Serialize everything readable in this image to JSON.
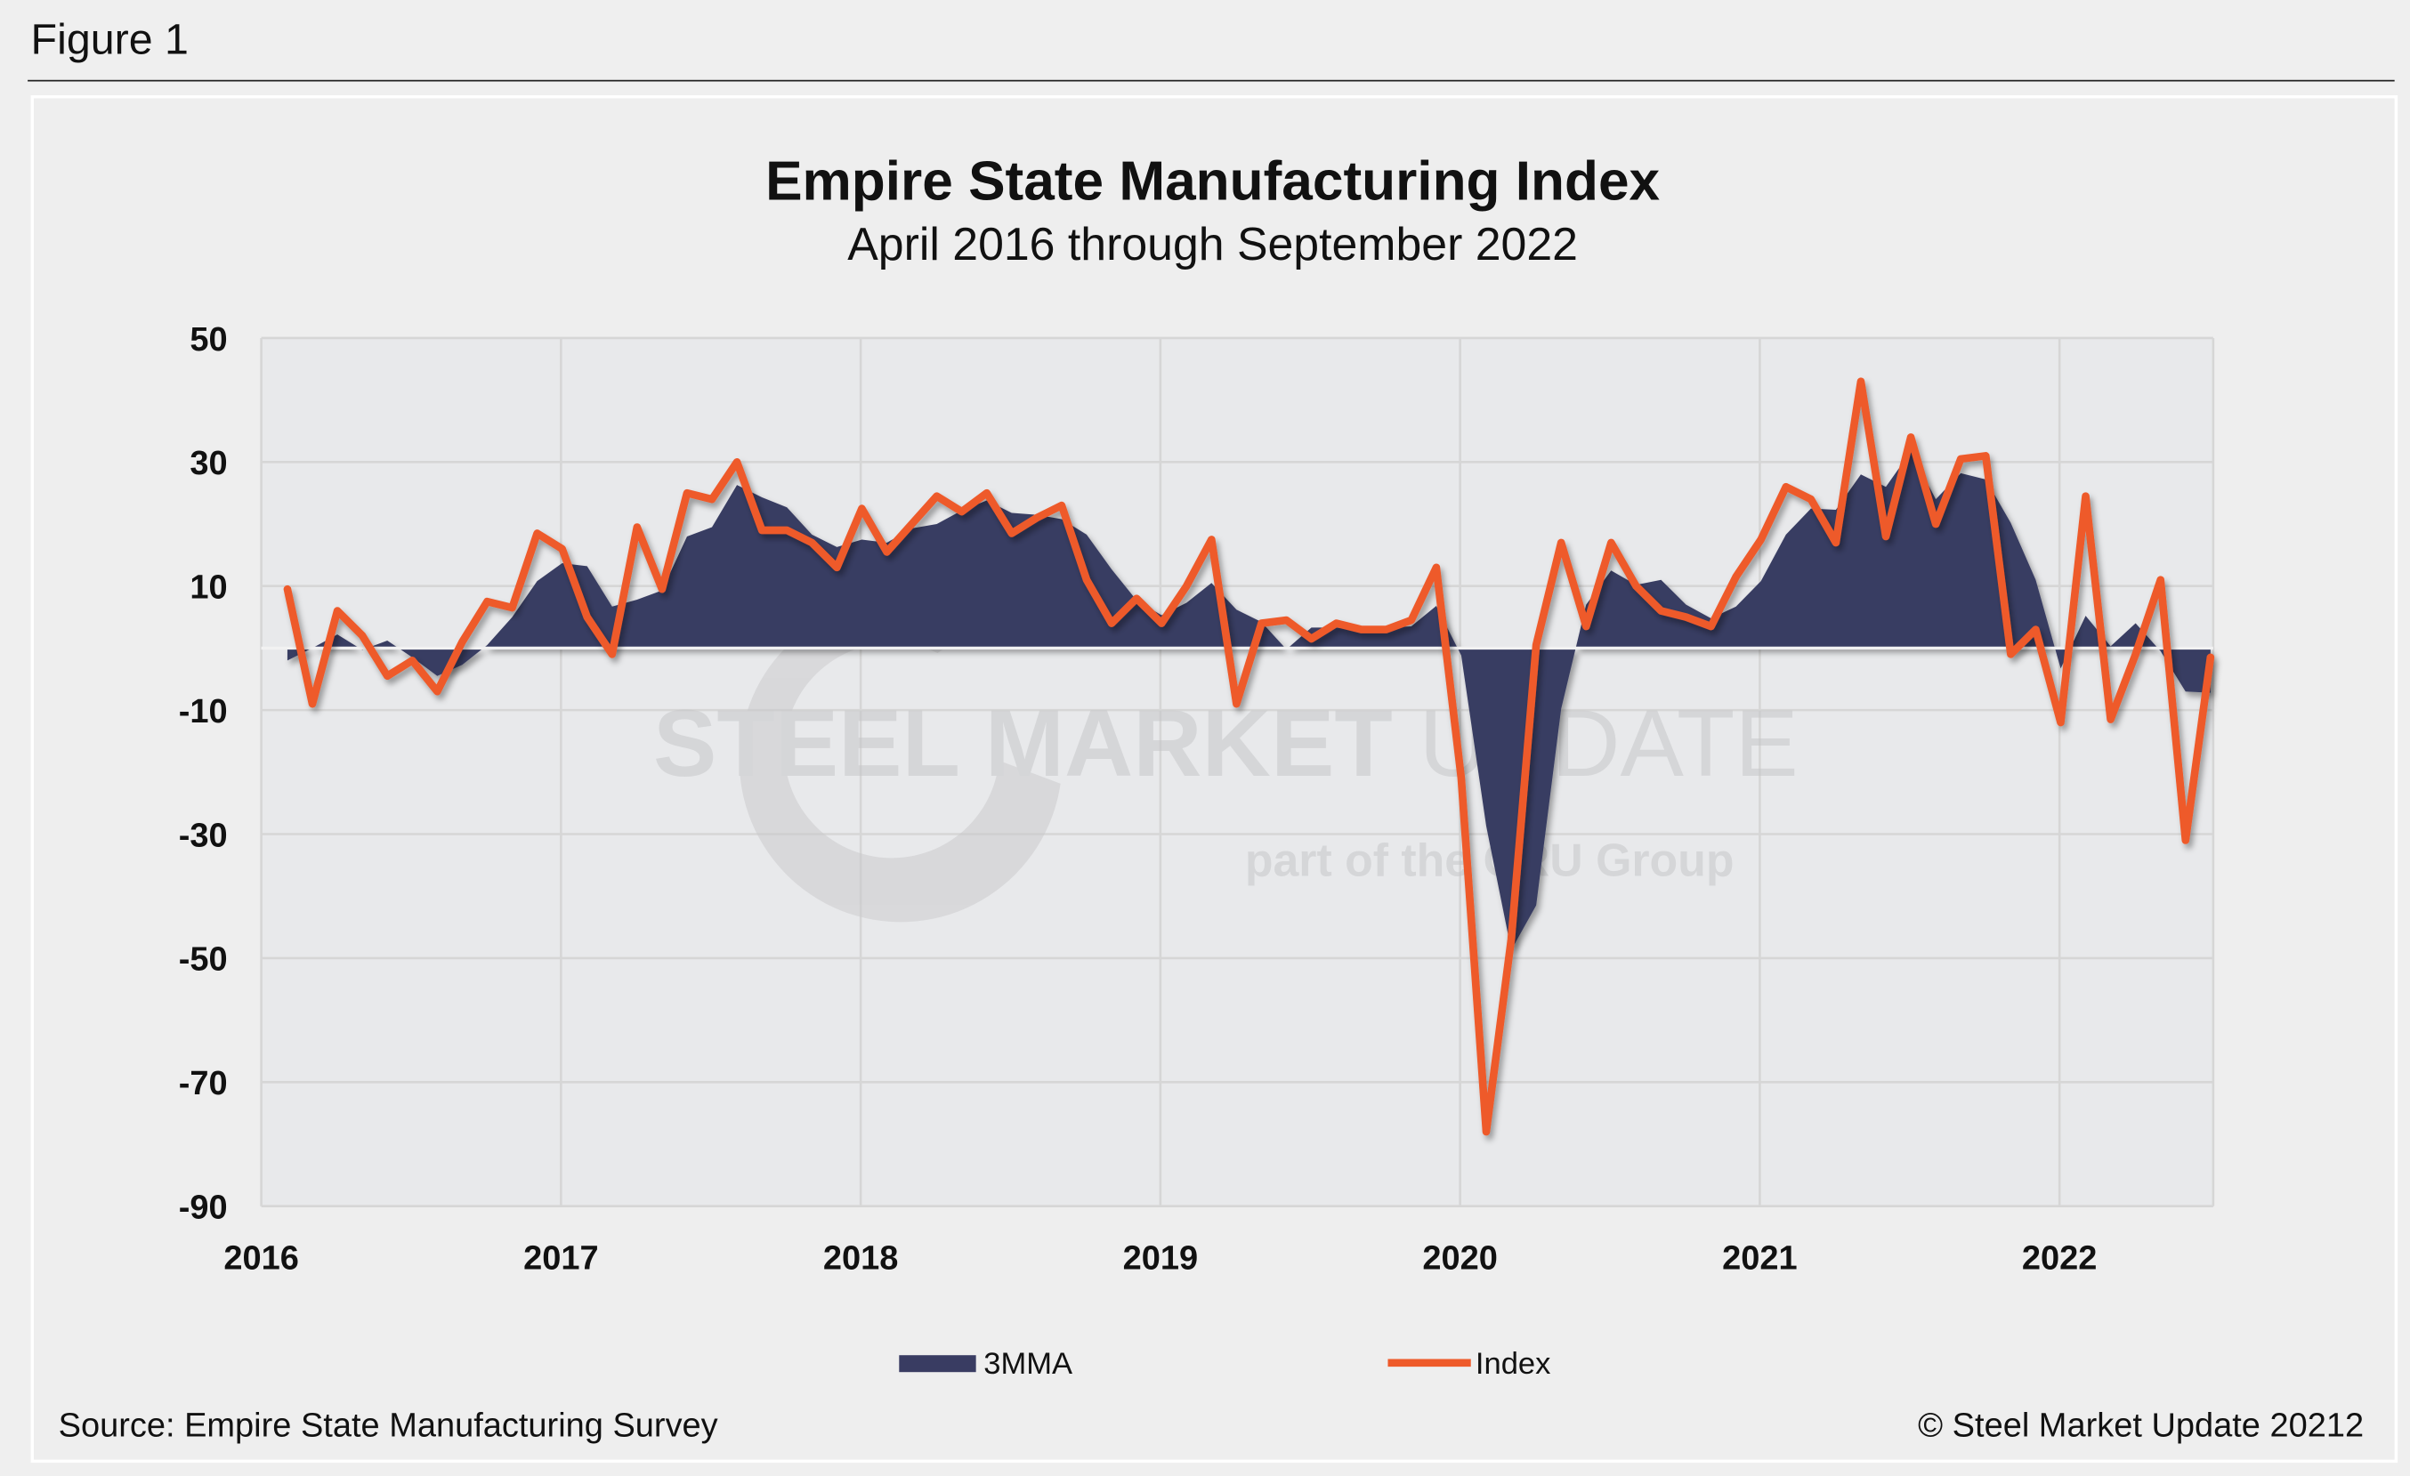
{
  "figure_label": "Figure 1",
  "source": "Source: Empire State Manufacturing Survey",
  "copyright": "© Steel Market Update 20212",
  "watermark": {
    "main_bold": "STEEL MARKET",
    "main_light": "UPDATE",
    "sub_a": "part of the",
    "sub_logo": "CRU",
    "sub_b": "Group"
  },
  "colors": {
    "area": "#393c62",
    "line": "#ee5a2a",
    "plot_bg": "#e8e9eb",
    "grid": "#d6d6d6"
  },
  "chart_data": {
    "type": "area+line",
    "title": "Empire State Manufacturing Index",
    "subtitle": "April 2016 through September 2022",
    "xlabel": "",
    "ylabel": "",
    "ylim": [
      -90,
      50
    ],
    "yticks": [
      "50",
      "30",
      "10",
      "-10",
      "-30",
      "-50",
      "-70",
      "-90"
    ],
    "ytick_values": [
      50,
      30,
      10,
      -10,
      -30,
      -50,
      -70,
      -90
    ],
    "xticks": [
      "2016",
      "2017",
      "2018",
      "2019",
      "2020",
      "2021",
      "2022"
    ],
    "grid": true,
    "legend_position": "bottom",
    "x_start": "Apr 2016",
    "x_end": "Sep 2022",
    "x_step": "month",
    "series": [
      {
        "name": "3MMA",
        "type": "area",
        "values": [
          -2,
          0,
          2.2,
          -0.3,
          1.2,
          -1.5,
          -4.5,
          -2.7,
          0.5,
          5,
          10.8,
          13.7,
          13.2,
          6.7,
          7.8,
          9.3,
          18,
          19.5,
          26.3,
          24.3,
          22.7,
          18.3,
          16.3,
          17.5,
          17,
          19.3,
          20,
          22.2,
          23.8,
          21.8,
          21.5,
          20.8,
          18.3,
          12.7,
          7.7,
          5.3,
          7.3,
          10.5,
          6.2,
          4.2,
          -0.2,
          3.3,
          3.3,
          2.8,
          3.3,
          3.5,
          6.8,
          -1.2,
          -28.7,
          -48.7,
          -41.5,
          -9.8,
          7,
          12.5,
          10.2,
          11,
          7,
          4.8,
          6.7,
          10.8,
          18.3,
          22.5,
          22.3,
          28,
          26,
          31.7,
          24,
          28.2,
          27.2,
          20.2,
          11,
          -3.3,
          5.2,
          0.3,
          4,
          -0.5,
          -7,
          -7.2
        ]
      },
      {
        "name": "Index",
        "type": "line",
        "values": [
          9.5,
          -9,
          6,
          2,
          -4.5,
          -2,
          -7,
          1,
          7.5,
          6.5,
          18.5,
          16,
          5,
          -1,
          19.5,
          9.5,
          25,
          24,
          30,
          19,
          19,
          17,
          13,
          22.5,
          15.5,
          20,
          24.5,
          22,
          25,
          18.5,
          21,
          23,
          11,
          4,
          8,
          4,
          10,
          17.5,
          -9,
          4,
          4.5,
          1.5,
          4,
          3,
          3,
          4.5,
          13,
          -21,
          -78,
          -47,
          0.5,
          17,
          3.5,
          17,
          10,
          6,
          5,
          3.5,
          11.5,
          17.5,
          26,
          24,
          17,
          43,
          18,
          34,
          20,
          30.5,
          31,
          -1,
          3,
          -12,
          24.5,
          -11.5,
          -1,
          11,
          -31,
          -1.5
        ]
      }
    ]
  }
}
